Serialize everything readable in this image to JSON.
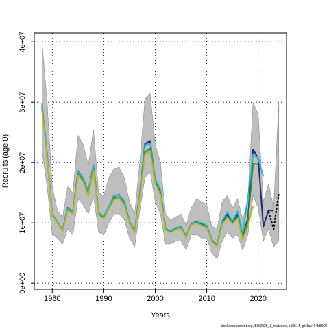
{
  "chart_data": {
    "type": "line",
    "title": "",
    "xlabel": "Years",
    "ylabel": "Recruits (age 0)",
    "xlim": [
      1976.5,
      2025.5
    ],
    "ylim": [
      -1000000,
      41500000
    ],
    "x_ticks": [
      1980,
      1990,
      2000,
      2010,
      2020
    ],
    "x_tick_labels": [
      "1980",
      "1990",
      "2000",
      "2010",
      "2020"
    ],
    "y_ticks": [
      0,
      10000000,
      20000000,
      30000000,
      40000000
    ],
    "y_tick_labels": [
      "0e+00",
      "1e+07",
      "2e+07",
      "3e+07",
      "4e+07"
    ],
    "grid": true,
    "grid_style": "dotted",
    "legend": "none",
    "footer": "stockassessment.org, BW2026_3_matconst, r19514, git:1cc464b8060",
    "colors": {
      "band": "#bebebe",
      "band_edge": "#8c8c8c",
      "navy": "#1e2a78",
      "cyan": "#28b4d8",
      "green": "#2e8b2e",
      "olive": "#b5b530",
      "black": "#000000"
    },
    "band": {
      "x": [
        1978,
        1979,
        1980,
        1981,
        1982,
        1983,
        1984,
        1985,
        1986,
        1987,
        1988,
        1989,
        1990,
        1991,
        1992,
        1993,
        1994,
        1995,
        1996,
        1997,
        1998,
        1999,
        2000,
        2001,
        2002,
        2003,
        2004,
        2005,
        2006,
        2007,
        2008,
        2009,
        2010,
        2011,
        2012,
        2013,
        2014,
        2015,
        2016,
        2017,
        2018,
        2019,
        2020,
        2021,
        2022,
        2023,
        2024
      ],
      "upper": [
        40000000,
        30000000,
        16000000,
        12000000,
        11000000,
        16000000,
        15000000,
        24500000,
        23000000,
        19500000,
        25500000,
        15000000,
        14500000,
        17500000,
        19000000,
        19200000,
        17500000,
        13500000,
        11500000,
        20000000,
        30500000,
        31500000,
        23000000,
        20000000,
        11500000,
        10500000,
        11000000,
        11500000,
        9500000,
        12500000,
        14000000,
        13500000,
        13000000,
        9500000,
        9000000,
        13500000,
        14500000,
        12500000,
        14000000,
        10500000,
        14000000,
        30000000,
        28000000,
        13500000,
        16500000,
        12500000,
        30000000
      ],
      "lower": [
        22000000,
        16000000,
        8000000,
        7500000,
        6500000,
        9000000,
        8000000,
        14000000,
        13000000,
        11500000,
        14500000,
        8500000,
        8000000,
        10000000,
        11500000,
        11500000,
        10500000,
        7500000,
        6000000,
        12000000,
        17500000,
        18500000,
        13500000,
        11500000,
        6500000,
        6500000,
        7000000,
        7000000,
        5500000,
        8000000,
        8000000,
        7500000,
        7500000,
        5000000,
        4000000,
        7000000,
        8500000,
        7500000,
        8000000,
        5500000,
        8000000,
        14500000,
        12500000,
        7000000,
        9000000,
        6000000,
        7000000
      ]
    },
    "series": [
      {
        "color": "navy",
        "x": [
          1978,
          1979,
          1980,
          1981,
          1982,
          1983,
          1984,
          1985,
          1986,
          1987,
          1988,
          1989,
          1990,
          1991,
          1992,
          1993,
          1994,
          1995,
          1996,
          1997,
          1998,
          1999,
          2000,
          2001,
          2002,
          2003,
          2004,
          2005,
          2006,
          2007,
          2008,
          2009,
          2010,
          2011,
          2012,
          2013,
          2014,
          2015,
          2016,
          2017,
          2018,
          2019,
          2020,
          2021,
          2022,
          2023
        ],
        "values": [
          29600000,
          21000000,
          11400000,
          10100000,
          8800000,
          12500000,
          11800000,
          18600000,
          17400000,
          15100000,
          19600000,
          11600000,
          11000000,
          12700000,
          14500000,
          14700000,
          13500000,
          10200000,
          8600000,
          14900000,
          23100000,
          23600000,
          17100000,
          15300000,
          9000000,
          8600000,
          9100000,
          9300000,
          7700000,
          9900000,
          10200000,
          9900000,
          9500000,
          7100000,
          6300000,
          10000000,
          11400000,
          10000000,
          11400000,
          7700000,
          10700000,
          22200000,
          20700000,
          9400000,
          12100000,
          12000000
        ]
      },
      {
        "color": "cyan",
        "x": [
          1978,
          1979,
          1980,
          1981,
          1982,
          1983,
          1984,
          1985,
          1986,
          1987,
          1988,
          1989,
          1990,
          1991,
          1992,
          1993,
          1994,
          1995,
          1996,
          1997,
          1998,
          1999,
          2000,
          2001,
          2002,
          2003,
          2004,
          2005,
          2006,
          2007,
          2008,
          2009,
          2010,
          2011,
          2012,
          2013,
          2014,
          2015,
          2016,
          2017,
          2018,
          2019,
          2020,
          2021
        ],
        "values": [
          29800000,
          21500000,
          11500000,
          10200000,
          8900000,
          12400000,
          11900000,
          18500000,
          17500000,
          15000000,
          19600000,
          11700000,
          11100000,
          12800000,
          14400000,
          14700000,
          13600000,
          10300000,
          8700000,
          14800000,
          22800000,
          23200000,
          17300000,
          15500000,
          9100000,
          8700000,
          9200000,
          9400000,
          7800000,
          10000000,
          10100000,
          10000000,
          9600000,
          7200000,
          6400000,
          10300000,
          11800000,
          10300000,
          11900000,
          8200000,
          14200000,
          21300000,
          20800000,
          17700000
        ]
      },
      {
        "color": "green",
        "x": [
          1978,
          1979,
          1980,
          1981,
          1982,
          1983,
          1984,
          1985,
          1986,
          1987,
          1988,
          1989,
          1990,
          1991,
          1992,
          1993,
          1994,
          1995,
          1996,
          1997,
          1998,
          1999,
          2000,
          2001,
          2002,
          2003,
          2004,
          2005,
          2006,
          2007,
          2008,
          2009,
          2010,
          2011,
          2012,
          2013,
          2014,
          2015,
          2016,
          2017,
          2018,
          2019,
          2020
        ],
        "values": [
          29000000,
          20900000,
          11300000,
          10000000,
          8700000,
          12200000,
          11600000,
          18100000,
          17000000,
          14700000,
          19000000,
          11400000,
          10800000,
          12400000,
          14100000,
          14300000,
          13200000,
          10000000,
          8500000,
          14500000,
          21700000,
          22300000,
          16800000,
          15000000,
          8900000,
          8500000,
          9000000,
          9200000,
          7600000,
          9800000,
          10000000,
          9700000,
          9300000,
          7000000,
          6200000,
          9800000,
          11100000,
          9900000,
          11000000,
          7600000,
          10300000,
          19800000,
          19700000
        ]
      },
      {
        "color": "olive",
        "x": [
          1978,
          1979,
          1980,
          1981,
          1982,
          1983,
          1984,
          1985,
          1986,
          1987,
          1988,
          1989,
          1990,
          1991,
          1992,
          1993,
          1994,
          1995,
          1996,
          1997,
          1998,
          1999,
          2000,
          2001,
          2002,
          2003,
          2004,
          2005,
          2006,
          2007,
          2008,
          2009,
          2010,
          2011,
          2012,
          2013,
          2014,
          2015,
          2016,
          2017,
          2018,
          2019
        ],
        "values": [
          28900000,
          20700000,
          11200000,
          10000000,
          8600000,
          12100000,
          11500000,
          17900000,
          16800000,
          14500000,
          18800000,
          11300000,
          10700000,
          12300000,
          13900000,
          14100000,
          13000000,
          9900000,
          8400000,
          14300000,
          21300000,
          21900000,
          16500000,
          14700000,
          8800000,
          8400000,
          8900000,
          9100000,
          7500000,
          9700000,
          9900000,
          9600000,
          9200000,
          6900000,
          6100000,
          9700000,
          10900000,
          9800000,
          10800000,
          7200000,
          9500000,
          12800000
        ]
      },
      {
        "color": "black",
        "dashed": true,
        "x": [
          2022,
          2023,
          2024
        ],
        "values": [
          11900000,
          9000000,
          14900000
        ]
      }
    ]
  }
}
